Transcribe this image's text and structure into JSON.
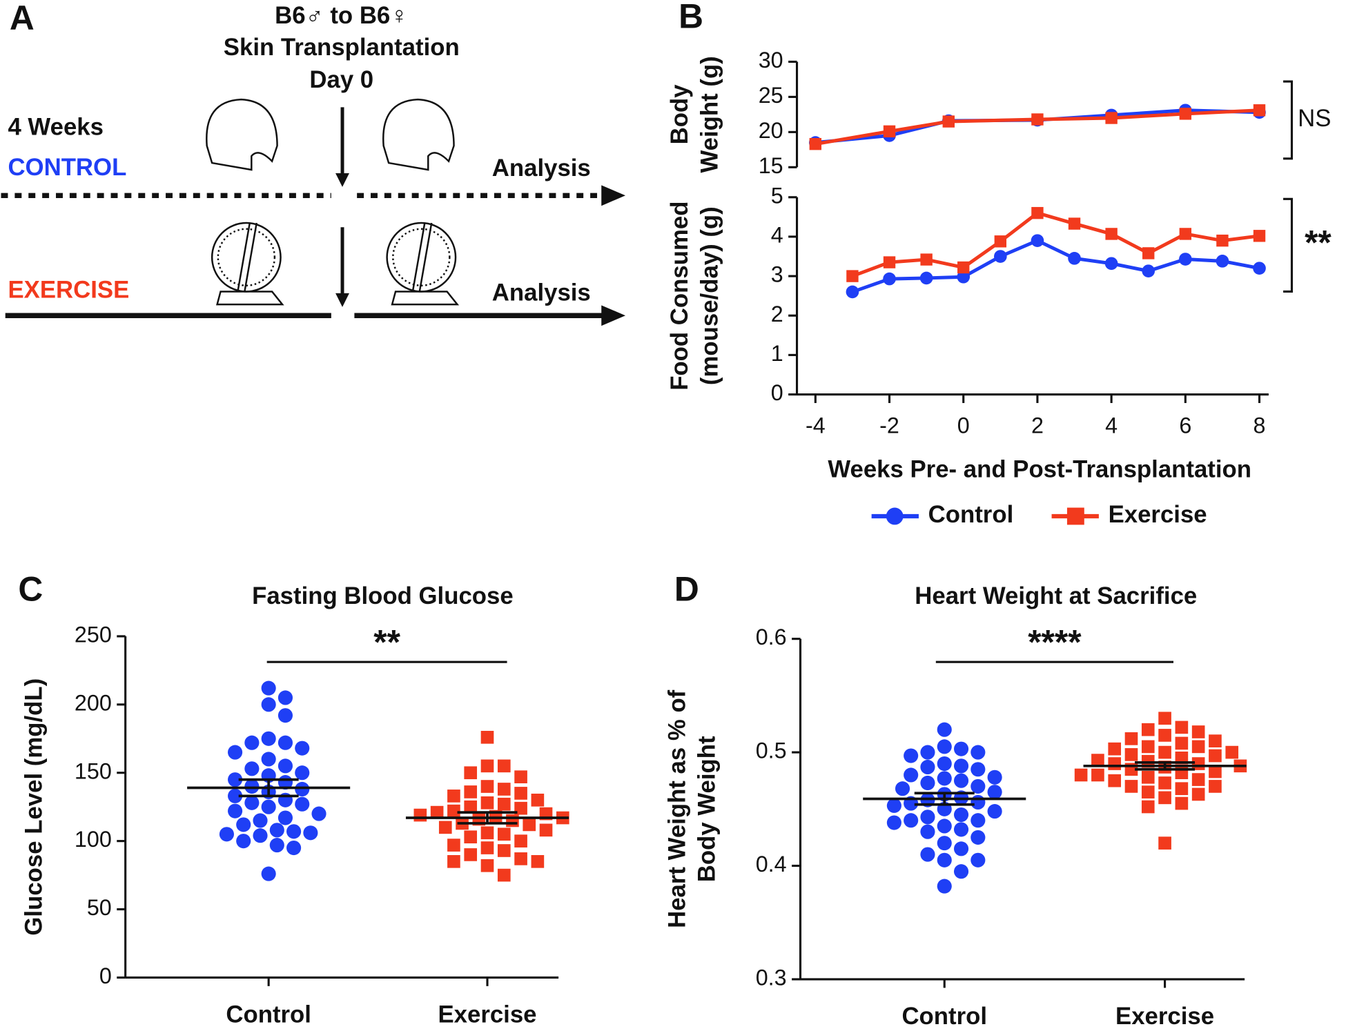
{
  "schematic": {
    "panel_label": "A",
    "title_lines": [
      "B6♂ to B6♀",
      "Skin Transplantation",
      "Day 0"
    ],
    "duration": "4 Weeks",
    "groups": [
      "CONTROL",
      "EXERCISE"
    ],
    "endpoint_labels": [
      "Analysis",
      "Analysis"
    ]
  },
  "chart_data": [
    {
      "type": "line",
      "panel_label": "B",
      "ylabel": [
        "Body",
        "Weight (g)"
      ],
      "ylim": [
        15,
        30
      ],
      "yticks": [
        15,
        20,
        25,
        30
      ],
      "xlim": [
        -4.5,
        8.25
      ],
      "x": [
        -4,
        -2,
        -0.4,
        2,
        4,
        6,
        8
      ],
      "series": [
        {
          "name": "Control",
          "color": "#1f3ff5",
          "marker": "circle",
          "values": [
            18.5,
            19.5,
            21.6,
            21.7,
            22.4,
            23.1,
            22.8
          ]
        },
        {
          "name": "Exercise",
          "color": "#f23a1d",
          "marker": "square",
          "values": [
            18.3,
            20.1,
            21.5,
            21.8,
            22.0,
            22.6,
            23.1
          ]
        }
      ],
      "annotation": "NS"
    },
    {
      "type": "line",
      "ylabel": [
        "Food Consumed",
        "(mouse/day) (g)"
      ],
      "ylim": [
        0,
        5
      ],
      "yticks": [
        0,
        1,
        2,
        3,
        4,
        5
      ],
      "xlim": [
        -4.5,
        8.25
      ],
      "xticks": [
        -4,
        -2,
        0,
        2,
        4,
        6,
        8
      ],
      "xlabel": "Weeks Pre- and Post-Transplantation",
      "x": [
        -3,
        -2,
        -1,
        0,
        1,
        2,
        3,
        4,
        5,
        6,
        7,
        8
      ],
      "series": [
        {
          "color": "#1f3ff5",
          "marker": "circle",
          "values": [
            2.6,
            2.93,
            2.95,
            2.98,
            3.5,
            3.9,
            3.45,
            3.32,
            3.13,
            3.43,
            3.38,
            3.2
          ]
        },
        {
          "color": "#f23a1d",
          "marker": "square",
          "values": [
            3.0,
            3.35,
            3.42,
            3.22,
            3.88,
            4.6,
            4.33,
            4.07,
            3.58,
            4.07,
            3.9,
            4.02
          ]
        }
      ],
      "annotation": "**"
    },
    {
      "type": "strip",
      "panel_label": "C",
      "title": "Fasting Blood Glucose",
      "ylabel": [
        "Glucose Level (mg/dL)"
      ],
      "categories": [
        "Control",
        "Exercise"
      ],
      "ylim": [
        0,
        250
      ],
      "yticks": [
        0,
        50,
        100,
        150,
        200,
        250
      ],
      "series": [
        {
          "color": "#1f3ff5",
          "marker": "circle",
          "mean": 139,
          "sem": 6,
          "values": [
            212,
            205,
            200,
            192,
            175,
            172,
            172,
            168,
            165,
            160,
            155,
            153,
            150,
            148,
            145,
            143,
            140,
            138,
            136,
            133,
            130,
            128,
            127,
            125,
            122,
            120,
            117,
            115,
            112,
            108,
            107,
            106,
            105,
            104,
            100,
            97,
            95,
            76
          ]
        },
        {
          "color": "#f23a1d",
          "marker": "square",
          "mean": 117,
          "sem": 4,
          "values": [
            176,
            155,
            155,
            150,
            147,
            140,
            138,
            136,
            135,
            133,
            130,
            128,
            127,
            125,
            124,
            122,
            121,
            120,
            119,
            118,
            117,
            116,
            115,
            113,
            112,
            110,
            108,
            106,
            105,
            103,
            100,
            97,
            95,
            93,
            90,
            87,
            85,
            85,
            82,
            75
          ]
        }
      ],
      "annotation": "**"
    },
    {
      "type": "strip",
      "panel_label": "D",
      "title": "Heart Weight at Sacrifice",
      "ylabel": [
        "Heart Weight as % of",
        "Body Weight"
      ],
      "categories": [
        "Control",
        "Exercise"
      ],
      "ylim": [
        0.3,
        0.6
      ],
      "yticks": [
        0.3,
        0.4,
        0.5,
        0.6
      ],
      "series": [
        {
          "color": "#1f3ff5",
          "marker": "circle",
          "mean": 0.459,
          "sem": 0.005,
          "values": [
            0.52,
            0.505,
            0.503,
            0.5,
            0.5,
            0.497,
            0.49,
            0.488,
            0.487,
            0.485,
            0.48,
            0.478,
            0.477,
            0.475,
            0.473,
            0.47,
            0.468,
            0.465,
            0.463,
            0.46,
            0.458,
            0.456,
            0.455,
            0.453,
            0.45,
            0.448,
            0.445,
            0.443,
            0.44,
            0.44,
            0.438,
            0.435,
            0.432,
            0.43,
            0.425,
            0.42,
            0.415,
            0.41,
            0.405,
            0.405,
            0.395,
            0.382
          ]
        },
        {
          "color": "#f23a1d",
          "marker": "square",
          "mean": 0.488,
          "sem": 0.003,
          "values": [
            0.53,
            0.522,
            0.52,
            0.518,
            0.515,
            0.512,
            0.51,
            0.508,
            0.505,
            0.505,
            0.503,
            0.5,
            0.5,
            0.498,
            0.497,
            0.495,
            0.493,
            0.492,
            0.49,
            0.49,
            0.488,
            0.487,
            0.485,
            0.483,
            0.482,
            0.48,
            0.48,
            0.478,
            0.476,
            0.475,
            0.473,
            0.47,
            0.47,
            0.468,
            0.465,
            0.463,
            0.46,
            0.455,
            0.452,
            0.42
          ]
        }
      ],
      "annotation": "****"
    }
  ]
}
